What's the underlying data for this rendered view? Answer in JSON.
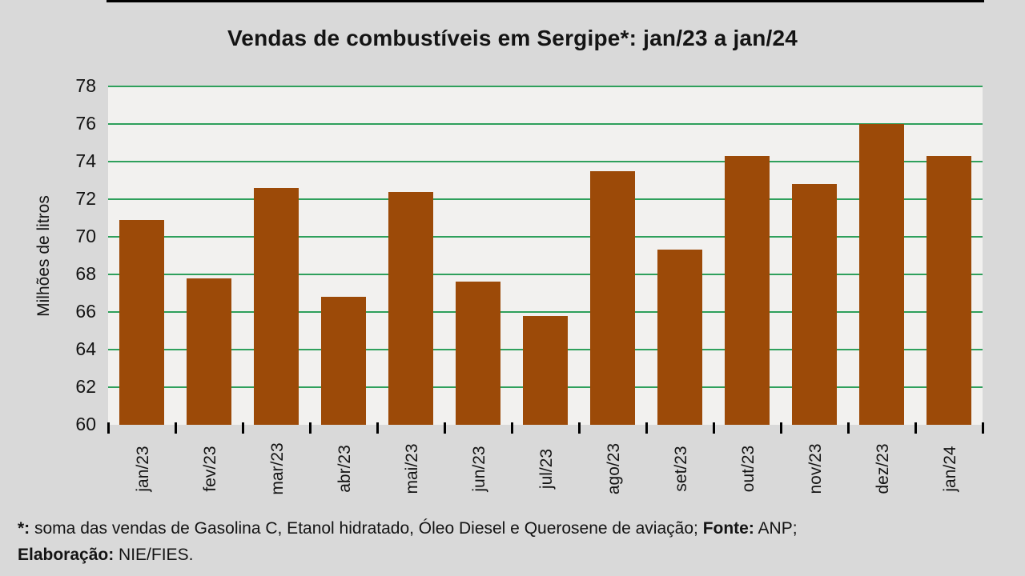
{
  "page": {
    "background_color": "#d9d9d9"
  },
  "chart_data": {
    "type": "bar",
    "title": "Vendas de combustíveis em Sergipe*: jan/23 a jan/24",
    "xlabel": "",
    "ylabel": "Milhões de litros",
    "categories": [
      "jan/23",
      "fev/23",
      "mar/23",
      "abr/23",
      "mai/23",
      "jun/23",
      "jul/23",
      "ago/23",
      "set/23",
      "out/23",
      "nov/23",
      "dez/23",
      "jan/24"
    ],
    "values": [
      70.9,
      67.8,
      72.6,
      66.8,
      72.4,
      67.6,
      65.8,
      73.5,
      69.3,
      74.3,
      72.8,
      76.0,
      74.3
    ],
    "ylim": [
      60,
      78
    ],
    "y_ticks": [
      60,
      62,
      64,
      66,
      68,
      70,
      72,
      74,
      76,
      78
    ],
    "grid": true,
    "legend_position": "none",
    "colors": {
      "bar_fill": "#9c4a08",
      "gridline": "#2fa05c",
      "plot_background": "#f2f1ef",
      "page_background": "#d9d9d9",
      "axis": "#000000",
      "text": "#141414"
    }
  },
  "footnote": {
    "lines": [
      {
        "segments": [
          {
            "text": "*:",
            "bold": true
          },
          {
            "text": " soma das vendas de Gasolina C, Etanol hidratado, Óleo Diesel e Querosene de aviação; ",
            "bold": false
          },
          {
            "text": "Fonte:",
            "bold": true
          },
          {
            "text": " ANP;",
            "bold": false
          }
        ]
      },
      {
        "segments": [
          {
            "text": "Elaboração:",
            "bold": true
          },
          {
            "text": " NIE/FIES.",
            "bold": false
          }
        ]
      }
    ]
  }
}
